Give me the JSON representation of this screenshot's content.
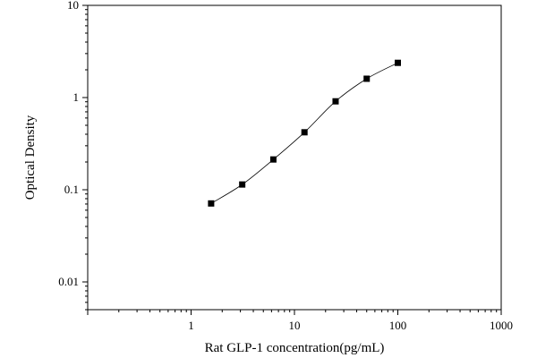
{
  "chart_data": {
    "type": "scatter",
    "xscale": "log",
    "yscale": "log",
    "xlim": [
      0.1,
      1000
    ],
    "ylim": [
      0.005,
      10
    ],
    "xlabel": "Rat GLP-1 concentration(pg/mL)",
    "ylabel": "Optical Density",
    "x_ticks": [
      1,
      10,
      100,
      1000
    ],
    "x_tick_labels": [
      "1",
      "10",
      "100",
      "1000"
    ],
    "y_ticks": [
      0.01,
      0.1,
      1,
      10
    ],
    "y_tick_labels": [
      "0.01",
      "0.1",
      "1",
      "10"
    ],
    "grid": false,
    "fit_curve": true,
    "series": [
      {
        "x": [
          1.5625,
          3.125,
          6.25,
          12.5,
          25,
          50,
          100
        ],
        "y": [
          0.071,
          0.114,
          0.213,
          0.42,
          0.91,
          1.6,
          2.38
        ]
      }
    ],
    "colors": {
      "marker": "#000000",
      "curve": "#000000",
      "axis": "#000000"
    }
  }
}
